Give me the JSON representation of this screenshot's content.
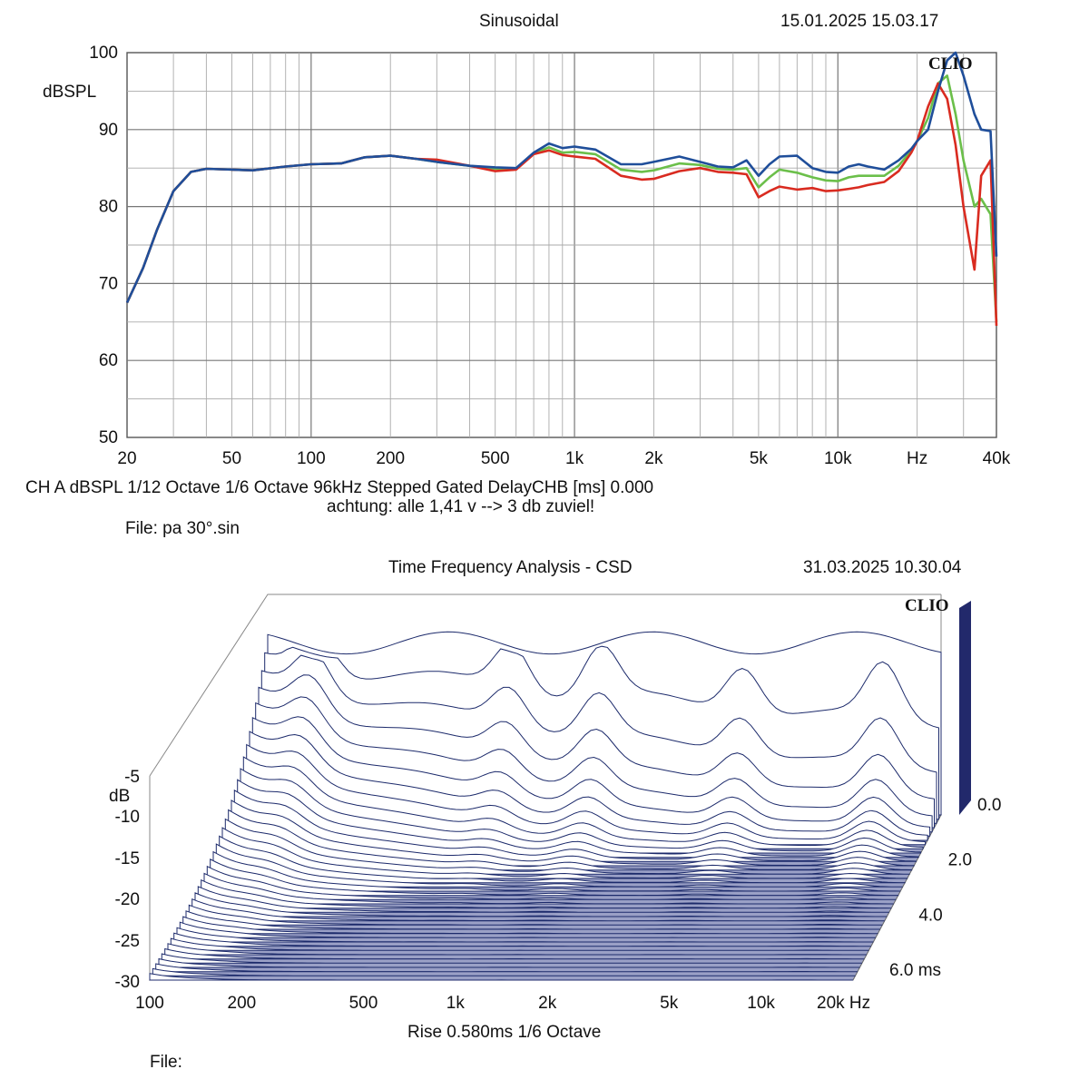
{
  "top": {
    "title": "Sinusoidal",
    "datetime": "15.01.2025 15.03.17",
    "brand": "CLIO",
    "ylabel": "dBSPL",
    "status_line": "CH A   dBSPL    1/12 Octave    1/6 Octave   96kHz   Stepped    Gated     DelayCHB [ms] 0.000",
    "note": "achtung: alle 1,41 v --> 3 db zuviel!",
    "file": "File: pa 30°.sin"
  },
  "bottom": {
    "title": "Time Frequency Analysis - CSD",
    "datetime": "31.03.2025 10.30.04",
    "brand": "CLIO",
    "ylabel": "dB",
    "rise": "Rise 0.580ms   1/6 Octave",
    "file": "File:"
  },
  "chart_data": [
    {
      "type": "line",
      "title": "Sinusoidal",
      "xlabel": "Hz",
      "ylabel": "dBSPL",
      "xscale": "log",
      "xlim": [
        20,
        40000
      ],
      "ylim": [
        50,
        100
      ],
      "grid": true,
      "x_tick_labels": [
        "20",
        "50",
        "100",
        "200",
        "500",
        "1k",
        "2k",
        "5k",
        "10k",
        "Hz",
        "40k"
      ],
      "y_tick_labels": [
        "100",
        "90",
        "80",
        "70",
        "60",
        "50"
      ],
      "colors": {
        "blue": "#1f4e9a",
        "red": "#d92b20",
        "green": "#6bbf4a"
      },
      "series": [
        {
          "color": "#1f4e9a",
          "x": [
            20,
            23,
            26,
            30,
            35,
            40,
            50,
            60,
            80,
            100,
            130,
            160,
            200,
            250,
            300,
            400,
            500,
            600,
            700,
            800,
            900,
            1000,
            1200,
            1500,
            1800,
            2000,
            2500,
            3000,
            3500,
            4000,
            4500,
            5000,
            5500,
            6000,
            7000,
            8000,
            9000,
            10000,
            11000,
            12000,
            13000,
            15000,
            17000,
            19000,
            20000,
            22000,
            24000,
            26000,
            28000,
            30000,
            33000,
            35000,
            38000,
            40000
          ],
          "y": [
            67.5,
            72,
            77,
            82,
            84.5,
            84.9,
            84.8,
            84.7,
            85.2,
            85.5,
            85.6,
            86.4,
            86.6,
            86.2,
            85.8,
            85.3,
            85.1,
            85,
            87,
            88.2,
            87.6,
            87.8,
            87.4,
            85.5,
            85.5,
            85.8,
            86.5,
            85.8,
            85.2,
            85.1,
            86,
            84,
            85.5,
            86.5,
            86.6,
            85,
            84.5,
            84.4,
            85.2,
            85.5,
            85.2,
            84.8,
            86,
            87.5,
            88.5,
            90,
            95,
            99,
            100,
            97,
            92,
            90,
            89.8,
            73.5
          ]
        },
        {
          "color": "#d92b20",
          "x": [
            20,
            23,
            26,
            30,
            35,
            40,
            50,
            60,
            80,
            100,
            130,
            160,
            200,
            250,
            300,
            400,
            500,
            600,
            700,
            800,
            900,
            1000,
            1200,
            1500,
            1800,
            2000,
            2500,
            3000,
            3500,
            4000,
            4500,
            5000,
            5500,
            6000,
            7000,
            8000,
            9000,
            10000,
            11000,
            12000,
            13000,
            15000,
            17000,
            19000,
            20000,
            22000,
            24000,
            26000,
            28000,
            30000,
            33000,
            35000,
            38000,
            40000
          ],
          "y": [
            67.5,
            72,
            77,
            82,
            84.5,
            84.9,
            84.8,
            84.7,
            85.2,
            85.5,
            85.6,
            86.4,
            86.6,
            86.2,
            86.1,
            85.3,
            84.6,
            84.8,
            86.8,
            87.3,
            86.7,
            86.5,
            86.2,
            84,
            83.5,
            83.6,
            84.6,
            85,
            84.5,
            84.4,
            84.2,
            81.2,
            82,
            82.6,
            82.2,
            82.4,
            82,
            82.1,
            82.3,
            82.5,
            82.8,
            83.2,
            84.6,
            87,
            88.5,
            93,
            96,
            94,
            88,
            80,
            71.8,
            84,
            86,
            64.5
          ]
        },
        {
          "color": "#6bbf4a",
          "x": [
            20,
            23,
            26,
            30,
            35,
            40,
            50,
            60,
            80,
            100,
            130,
            160,
            200,
            250,
            300,
            400,
            500,
            600,
            700,
            800,
            900,
            1000,
            1200,
            1500,
            1800,
            2000,
            2500,
            3000,
            3500,
            4000,
            4500,
            5000,
            5500,
            6000,
            7000,
            8000,
            9000,
            10000,
            11000,
            12000,
            13000,
            15000,
            17000,
            19000,
            20000,
            22000,
            24000,
            26000,
            28000,
            30000,
            33000,
            35000,
            38000,
            40000
          ],
          "y": [
            67.5,
            72,
            77,
            82,
            84.5,
            84.9,
            84.8,
            84.7,
            85.2,
            85.5,
            85.6,
            86.4,
            86.6,
            86.2,
            85.8,
            85.3,
            84.9,
            84.9,
            86.9,
            87.7,
            87,
            87.1,
            86.8,
            84.8,
            84.5,
            84.7,
            85.6,
            85.4,
            84.9,
            84.8,
            85,
            82.5,
            83.8,
            84.8,
            84.4,
            83.8,
            83.4,
            83.3,
            83.8,
            84,
            84,
            84,
            85.3,
            87.3,
            88.5,
            91.5,
            96,
            97,
            92,
            86,
            80,
            81,
            79,
            65
          ]
        }
      ]
    },
    {
      "type": "area",
      "title": "Time Frequency Analysis - CSD",
      "xlabel": "Hz",
      "ylabel": "dB",
      "zlabel": "ms",
      "xscale": "log",
      "xlim": [
        100,
        20000
      ],
      "ylim": [
        -30,
        -5
      ],
      "zlim": [
        0,
        6
      ],
      "x_tick_labels": [
        "100",
        "200",
        "500",
        "1k",
        "2k",
        "5k",
        "10k",
        "20k Hz"
      ],
      "y_tick_labels": [
        "-5",
        "-10",
        "-15",
        "-20",
        "-25",
        "-30"
      ],
      "z_tick_labels": [
        "0.0",
        "2.0",
        "4.0",
        "6.0  ms"
      ],
      "colors": {
        "trace": "#1c2a6b",
        "floor": "#9aa0c6"
      }
    }
  ]
}
